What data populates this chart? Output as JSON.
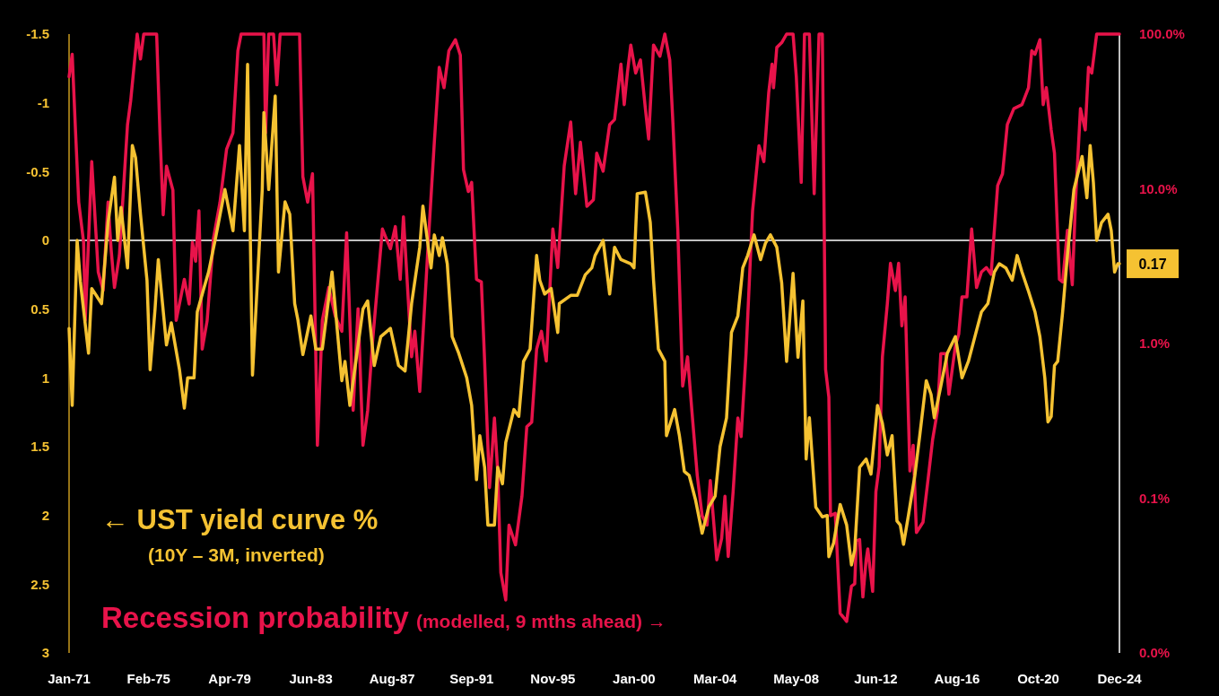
{
  "chart_data": {
    "type": "line",
    "xlim": [
      "1971-01",
      "2024-12"
    ],
    "xticks": [
      {
        "value": "1971-01",
        "label": "Jan-71"
      },
      {
        "value": "1975-02",
        "label": "Feb-75"
      },
      {
        "value": "1979-04",
        "label": "Apr-79"
      },
      {
        "value": "1983-06",
        "label": "Jun-83"
      },
      {
        "value": "1987-08",
        "label": "Aug-87"
      },
      {
        "value": "1991-09",
        "label": "Sep-91"
      },
      {
        "value": "1995-11",
        "label": "Nov-95"
      },
      {
        "value": "2000-01",
        "label": "Jan-00"
      },
      {
        "value": "2004-03",
        "label": "Mar-04"
      },
      {
        "value": "2008-05",
        "label": "May-08"
      },
      {
        "value": "2012-06",
        "label": "Jun-12"
      },
      {
        "value": "2016-08",
        "label": "Aug-16"
      },
      {
        "value": "2020-10",
        "label": "Oct-20"
      },
      {
        "value": "2024-12",
        "label": "Dec-24"
      }
    ],
    "ylim": [
      3,
      -1.5
    ],
    "yticks": [
      -1.5,
      -1,
      -0.5,
      0,
      0.5,
      1,
      1.5,
      2,
      2.5,
      3
    ],
    "y2lim": [
      0.01,
      100
    ],
    "y2ticks": [
      {
        "value": 0.01,
        "label": "0.0%"
      },
      {
        "value": 0.1,
        "label": "0.1%"
      },
      {
        "value": 1,
        "label": "1.0%"
      },
      {
        "value": 10,
        "label": "10.0%"
      },
      {
        "value": 100,
        "label": "100.0%"
      }
    ],
    "log": "y2",
    "grid": false,
    "legend": "bottom left",
    "ref_lines": [
      {
        "axis": "y",
        "value": 0,
        "color": "#ffffff"
      }
    ],
    "annotations": [
      "(10Y – 3M, inverted)",
      "(modelled, 9 mths ahead) →",
      {
        "text": "0.17",
        "x": "2024-12",
        "y": 0.17
      }
    ],
    "series": [
      {
        "name": "← UST yield curve %",
        "color": "#f5c232",
        "x": [
          "1971-01",
          "1971-03",
          "1971-06",
          "1971-08",
          "1972-01",
          "1972-03",
          "1972-09",
          "1973-01",
          "1973-05",
          "1973-07",
          "1973-09",
          "1974-01",
          "1974-04",
          "1974-06",
          "1974-09",
          "1975-01",
          "1975-03",
          "1975-06",
          "1975-08",
          "1976-01",
          "1976-04",
          "1976-09",
          "1976-12",
          "1977-02",
          "1977-06",
          "1977-08",
          "1977-12",
          "1978-03",
          "1978-07",
          "1979-01",
          "1979-06",
          "1979-10",
          "1980-01",
          "1980-03",
          "1980-06",
          "1980-12",
          "1981-01",
          "1981-04",
          "1981-08",
          "1981-10",
          "1982-02",
          "1982-05",
          "1982-08",
          "1982-10",
          "1983-01",
          "1983-06",
          "1983-09",
          "1984-01",
          "1984-07",
          "1985-01",
          "1985-03",
          "1985-06",
          "1986-02",
          "1986-05",
          "1986-09",
          "1987-01",
          "1987-07",
          "1987-12",
          "1988-04",
          "1988-08",
          "1989-01",
          "1989-03",
          "1989-08",
          "1989-10",
          "1990-01",
          "1990-03",
          "1990-06",
          "1990-09",
          "1991-01",
          "1991-06",
          "1991-09",
          "1991-12",
          "1992-02",
          "1992-05",
          "1992-07",
          "1992-11",
          "1993-01",
          "1993-04",
          "1993-06",
          "1993-11",
          "1994-02",
          "1994-05",
          "1994-09",
          "1995-01",
          "1995-03",
          "1995-06",
          "1995-10",
          "1996-02",
          "1996-03",
          "1996-10",
          "1997-02",
          "1997-07",
          "1997-11",
          "1998-01",
          "1998-06",
          "1998-10",
          "1999-01",
          "1999-05",
          "1999-11",
          "2000-01",
          "2000-03",
          "2000-08",
          "2000-11",
          "2001-01",
          "2001-04",
          "2001-08",
          "2001-09",
          "2002-02",
          "2002-05",
          "2002-08",
          "2002-11",
          "2003-03",
          "2003-07",
          "2003-11",
          "2004-03",
          "2004-06",
          "2004-10",
          "2005-01",
          "2005-05",
          "2005-08",
          "2005-11",
          "2006-03",
          "2006-07",
          "2006-10",
          "2007-01",
          "2007-05",
          "2007-08",
          "2007-11",
          "2008-03",
          "2008-06",
          "2008-09",
          "2008-11",
          "2009-01",
          "2009-05",
          "2009-09",
          "2009-12",
          "2010-01",
          "2010-04",
          "2010-08",
          "2010-12",
          "2011-03",
          "2011-05",
          "2011-08",
          "2011-12",
          "2012-03",
          "2012-07",
          "2012-10",
          "2013-01",
          "2013-04",
          "2013-07",
          "2013-09",
          "2013-11",
          "2014-02",
          "2014-06",
          "2014-09",
          "2015-01",
          "2015-04",
          "2015-06",
          "2015-10",
          "2016-02",
          "2016-07",
          "2016-11",
          "2017-03",
          "2017-07",
          "2017-11",
          "2018-03",
          "2018-07",
          "2018-10",
          "2019-02",
          "2019-06",
          "2019-09",
          "2019-12",
          "2020-04",
          "2020-08",
          "2020-11",
          "2021-02",
          "2021-04",
          "2021-06",
          "2021-08",
          "2021-10",
          "2022-01",
          "2022-04",
          "2022-06",
          "2022-08",
          "2023-01",
          "2023-04",
          "2023-06",
          "2023-08",
          "2023-10",
          "2024-01",
          "2024-05",
          "2024-07",
          "2024-09",
          "2024-11",
          "2024-12"
        ],
        "values": [
          0.64,
          1.2,
          0,
          0.3,
          0.82,
          0.35,
          0.46,
          -0.13,
          -0.46,
          0,
          -0.24,
          0.2,
          -0.69,
          -0.6,
          -0.19,
          0.29,
          0.94,
          0.5,
          0.14,
          0.76,
          0.6,
          0.94,
          1.22,
          1.0,
          1.0,
          0.52,
          0.35,
          0.23,
          0,
          -0.37,
          -0.07,
          -0.69,
          -0.07,
          -1.28,
          0.98,
          -0.37,
          -0.93,
          -0.37,
          -1.05,
          0.23,
          -0.28,
          -0.19,
          0.46,
          0.58,
          0.83,
          0.55,
          0.79,
          0.79,
          0.23,
          1.02,
          0.88,
          1.2,
          0.5,
          0.44,
          0.91,
          0.7,
          0.64,
          0.91,
          0.95,
          0.46,
          0.05,
          -0.25,
          0.2,
          -0.04,
          0.11,
          -0.02,
          0.17,
          0.7,
          0.82,
          1.0,
          1.2,
          1.74,
          1.42,
          1.65,
          2.07,
          2.07,
          1.65,
          1.77,
          1.47,
          1.23,
          1.28,
          0.88,
          0.79,
          0.11,
          0.29,
          0.39,
          0.35,
          0.67,
          0.46,
          0.4,
          0.4,
          0.25,
          0.2,
          0.11,
          0,
          0.39,
          0.05,
          0.14,
          0.17,
          0.2,
          -0.34,
          -0.35,
          -0.13,
          0.29,
          0.79,
          0.88,
          1.42,
          1.23,
          1.42,
          1.68,
          1.71,
          1.89,
          2.13,
          1.94,
          1.86,
          1.5,
          1.29,
          0.67,
          0.55,
          0.2,
          0.11,
          -0.04,
          0.14,
          0.02,
          -0.04,
          0.05,
          0.31,
          0.88,
          0.24,
          0.85,
          0.44,
          1.59,
          1.29,
          1.94,
          2.01,
          2.0,
          2.3,
          2.2,
          1.92,
          2.07,
          2.36,
          2.25,
          1.65,
          1.59,
          1.7,
          1.2,
          1.33,
          1.56,
          1.42,
          2.04,
          2.07,
          2.21,
          2.0,
          1.71,
          1.42,
          1.02,
          1.12,
          1.29,
          1.06,
          0.82,
          0.7,
          1.0,
          0.88,
          0.7,
          0.52,
          0.46,
          0.23,
          0.17,
          0.2,
          0.29,
          0.11,
          0.23,
          0.37,
          0.52,
          0.7,
          1.0,
          1.32,
          1.28,
          0.91,
          0.88,
          0.52,
          0.11,
          -0.13,
          -0.37,
          -0.61,
          -0.31,
          -0.69,
          -0.42,
          0,
          -0.13,
          -0.19,
          -0.07,
          0.23,
          0.17,
          0.17
        ]
      },
      {
        "name": "Recession probability",
        "color": "#e8134a",
        "axis": "y2",
        "x": [
          "1971-01",
          "1971-03",
          "1971-05",
          "1971-07",
          "1971-10",
          "1971-11",
          "1972-03",
          "1972-07",
          "1972-10",
          "1973-01",
          "1973-03",
          "1973-05",
          "1973-08",
          "1974-01",
          "1974-03",
          "1974-07",
          "1974-09",
          "1974-11",
          "1975-07",
          "1975-09",
          "1975-11",
          "1976-01",
          "1976-05",
          "1976-07",
          "1976-12",
          "1977-03",
          "1977-05",
          "1977-07",
          "1977-09",
          "1977-11",
          "1978-02",
          "1978-06",
          "1978-10",
          "1979-02",
          "1979-06",
          "1979-09",
          "1979-11",
          "1981-01",
          "1981-02",
          "1981-04",
          "1981-07",
          "1981-09",
          "1981-11",
          "1982-11",
          "1983-01",
          "1983-04",
          "1983-07",
          "1983-10",
          "1984-01",
          "1984-05",
          "1984-09",
          "1985-01",
          "1985-04",
          "1985-08",
          "1985-11",
          "1986-02",
          "1986-05",
          "1986-08",
          "1987-02",
          "1987-07",
          "1987-10",
          "1988-01",
          "1988-03",
          "1988-08",
          "1988-10",
          "1989-01",
          "1989-06",
          "1989-10",
          "1990-01",
          "1990-04",
          "1990-07",
          "1990-11",
          "1991-02",
          "1991-04",
          "1991-07",
          "1991-09",
          "1991-12",
          "1992-03",
          "1992-05",
          "1992-08",
          "1992-11",
          "1993-01",
          "1993-03",
          "1993-06",
          "1993-08",
          "1993-12",
          "1994-04",
          "1994-07",
          "1994-10",
          "1995-01",
          "1995-04",
          "1995-07",
          "1995-11",
          "1996-02",
          "1996-06",
          "1996-10",
          "1997-01",
          "1997-04",
          "1997-08",
          "1997-12",
          "1998-02",
          "1998-06",
          "1998-10",
          "1999-01",
          "1999-05",
          "1999-07",
          "1999-09",
          "1999-11",
          "2000-02",
          "2000-05",
          "2000-08",
          "2000-10",
          "2001-01",
          "2001-05",
          "2001-08",
          "2001-11",
          "2002-01",
          "2002-04",
          "2002-07",
          "2002-10",
          "2003-01",
          "2003-04",
          "2003-07",
          "2003-10",
          "2003-12",
          "2004-04",
          "2004-07",
          "2004-09",
          "2004-11",
          "2005-02",
          "2005-05",
          "2005-07",
          "2005-10",
          "2006-02",
          "2006-06",
          "2006-09",
          "2006-12",
          "2007-02",
          "2007-03",
          "2007-05",
          "2007-08",
          "2007-11",
          "2008-03",
          "2008-05",
          "2008-08",
          "2008-10",
          "2009-01",
          "2009-04",
          "2009-07",
          "2009-09",
          "2009-11",
          "2010-01",
          "2010-02",
          "2010-05",
          "2010-08",
          "2010-10",
          "2010-12",
          "2011-03",
          "2011-05",
          "2011-06",
          "2011-08",
          "2011-10",
          "2011-12",
          "2012-01",
          "2012-04",
          "2012-06",
          "2012-08",
          "2012-10",
          "2013-01",
          "2013-03",
          "2013-06",
          "2013-08",
          "2013-10",
          "2013-12",
          "2014-03",
          "2014-05",
          "2014-07",
          "2014-11",
          "2015-02",
          "2015-05",
          "2015-08",
          "2015-10",
          "2016-01",
          "2016-03",
          "2016-07",
          "2016-09",
          "2016-11",
          "2017-02",
          "2017-05",
          "2017-08",
          "2017-11",
          "2018-02",
          "2018-05",
          "2018-09",
          "2018-12",
          "2019-03",
          "2019-07",
          "2019-12",
          "2020-04",
          "2020-06",
          "2020-08",
          "2020-11",
          "2021-01",
          "2021-03",
          "2021-06",
          "2021-08",
          "2021-11",
          "2022-01",
          "2022-04",
          "2022-07",
          "2022-09",
          "2022-12",
          "2023-03",
          "2023-05",
          "2023-07",
          "2023-10",
          "2024-12"
        ],
        "values": [
          53,
          74,
          24,
          8.2,
          4.5,
          1.41,
          15,
          2.9,
          2.2,
          8.2,
          4,
          2.3,
          3.7,
          26,
          37,
          100,
          69,
          100,
          100,
          23,
          6.8,
          14,
          9.8,
          1.41,
          2.6,
          1.8,
          4.5,
          3.4,
          7.2,
          0.92,
          1.4,
          4.8,
          8.2,
          18,
          23,
          78,
          100,
          100,
          23,
          100,
          100,
          47,
          100,
          100,
          12,
          8.2,
          12.5,
          0.22,
          1.41,
          2.3,
          1.5,
          1.2,
          5.2,
          0.37,
          1.68,
          0.22,
          0.37,
          1.04,
          5.5,
          4.1,
          5.7,
          2.6,
          6.6,
          0.82,
          1.2,
          0.49,
          4,
          20,
          61,
          45,
          78,
          92,
          73,
          13.3,
          9.6,
          11,
          2.6,
          2.5,
          0.77,
          0.117,
          0.33,
          0.15,
          0.033,
          0.022,
          0.067,
          0.05,
          0.103,
          0.29,
          0.31,
          0.92,
          1.2,
          0.77,
          5.5,
          3.1,
          14,
          27,
          9.3,
          20,
          7.7,
          8.5,
          17,
          13,
          26,
          28,
          64,
          35,
          57,
          85,
          56,
          68,
          33,
          21,
          85,
          72,
          100,
          68,
          26,
          5.4,
          0.53,
          0.82,
          0.33,
          0.14,
          0.077,
          0.067,
          0.13,
          0.04,
          0.055,
          0.103,
          0.042,
          0.11,
          0.33,
          0.25,
          0.86,
          7.2,
          19,
          15,
          42,
          64,
          45,
          82,
          88,
          100,
          100,
          53,
          11,
          100,
          100,
          9.3,
          100,
          100,
          0.68,
          0.45,
          0.077,
          0.08,
          0.018,
          0.017,
          0.016,
          0.027,
          0.028,
          0.053,
          0.054,
          0.023,
          0.04,
          0.047,
          0.025,
          0.11,
          0.16,
          0.82,
          1.8,
          3.3,
          2.2,
          3.3,
          1.3,
          2.0,
          0.15,
          0.22,
          0.06,
          0.07,
          0.13,
          0.24,
          0.37,
          0.86,
          0.86,
          0.47,
          0.97,
          1.15,
          2.0,
          2.0,
          5.5,
          2.3,
          2.9,
          3.1,
          2.8,
          10.5,
          12.5,
          26,
          33,
          35,
          45,
          78,
          74,
          92,
          35,
          45,
          24,
          17,
          2.6,
          2.5,
          5.4,
          2.4,
          8.5,
          33,
          24,
          61,
          56,
          100,
          100
        ]
      }
    ]
  }
}
